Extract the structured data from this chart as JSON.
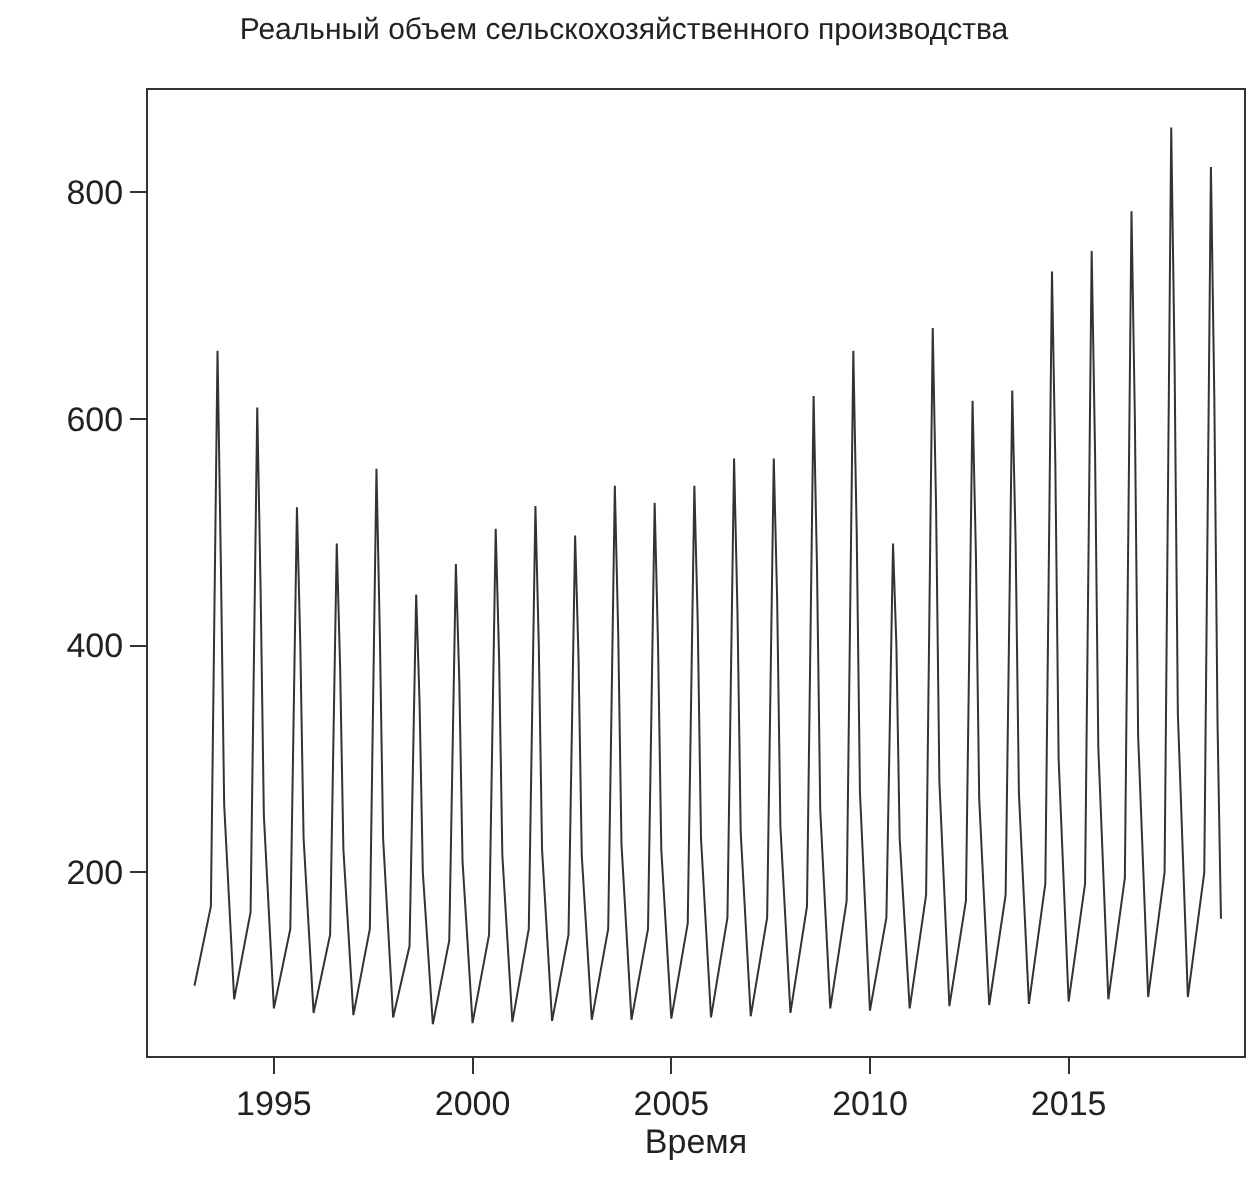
{
  "chart_data": {
    "type": "line",
    "title": "Реальный объем сельскохозяйственного производства",
    "xlabel": "Время",
    "x": [
      "1993-01",
      "1993-06",
      "1993-08",
      "1993-09",
      "1993-10",
      "1994-01",
      "1994-06",
      "1994-08",
      "1994-09",
      "1994-10",
      "1995-01",
      "1995-06",
      "1995-08",
      "1995-09",
      "1995-10",
      "1996-01",
      "1996-06",
      "1996-08",
      "1996-09",
      "1996-10",
      "1997-01",
      "1997-06",
      "1997-08",
      "1997-09",
      "1997-10",
      "1998-01",
      "1998-06",
      "1998-08",
      "1998-09",
      "1998-10",
      "1999-01",
      "1999-06",
      "1999-08",
      "1999-09",
      "1999-10",
      "2000-01",
      "2000-06",
      "2000-08",
      "2000-09",
      "2000-10",
      "2001-01",
      "2001-06",
      "2001-08",
      "2001-09",
      "2001-10",
      "2002-01",
      "2002-06",
      "2002-08",
      "2002-09",
      "2002-10",
      "2003-01",
      "2003-06",
      "2003-08",
      "2003-09",
      "2003-10",
      "2004-01",
      "2004-06",
      "2004-08",
      "2004-09",
      "2004-10",
      "2005-01",
      "2005-06",
      "2005-08",
      "2005-09",
      "2005-10",
      "2006-01",
      "2006-06",
      "2006-08",
      "2006-09",
      "2006-10",
      "2007-01",
      "2007-06",
      "2007-08",
      "2007-09",
      "2007-10",
      "2008-01",
      "2008-06",
      "2008-08",
      "2008-09",
      "2008-10",
      "2009-01",
      "2009-06",
      "2009-08",
      "2009-09",
      "2009-10",
      "2010-01",
      "2010-06",
      "2010-08",
      "2010-09",
      "2010-10",
      "2011-01",
      "2011-06",
      "2011-08",
      "2011-09",
      "2011-10",
      "2012-01",
      "2012-06",
      "2012-08",
      "2012-09",
      "2012-10",
      "2013-01",
      "2013-06",
      "2013-08",
      "2013-09",
      "2013-10",
      "2014-01",
      "2014-06",
      "2014-08",
      "2014-09",
      "2014-10",
      "2015-01",
      "2015-06",
      "2015-08",
      "2015-09",
      "2015-10",
      "2016-01",
      "2016-06",
      "2016-08",
      "2016-09",
      "2016-10",
      "2017-01",
      "2017-06",
      "2017-08",
      "2017-09",
      "2017-10",
      "2018-01",
      "2018-06",
      "2018-08",
      "2018-09",
      "2018-10",
      "2018-11"
    ],
    "series": [
      {
        "color": "#333333",
        "values": [
          100,
          170,
          660,
          470,
          260,
          88,
          165,
          610,
          450,
          250,
          80,
          150,
          522,
          400,
          230,
          76,
          145,
          490,
          380,
          220,
          74,
          150,
          556,
          410,
          230,
          72,
          135,
          445,
          350,
          200,
          66,
          140,
          472,
          370,
          210,
          67,
          145,
          503,
          390,
          215,
          68,
          150,
          523,
          400,
          220,
          69,
          145,
          497,
          390,
          215,
          70,
          150,
          541,
          410,
          225,
          70,
          150,
          526,
          400,
          220,
          71,
          155,
          541,
          420,
          230,
          72,
          160,
          565,
          430,
          235,
          73,
          160,
          565,
          440,
          240,
          76,
          170,
          620,
          470,
          255,
          80,
          175,
          660,
          500,
          270,
          78,
          160,
          490,
          400,
          230,
          80,
          180,
          680,
          520,
          280,
          82,
          175,
          616,
          480,
          265,
          83,
          180,
          625,
          490,
          270,
          84,
          190,
          730,
          560,
          300,
          86,
          190,
          748,
          570,
          310,
          88,
          195,
          783,
          600,
          320,
          90,
          200,
          857,
          650,
          340,
          90,
          200,
          822,
          620,
          330,
          159
        ]
      }
    ],
    "xlim": [
      "1991-11",
      "2019-06"
    ],
    "xticks": [
      "1995",
      "2000",
      "2005",
      "2010",
      "2015"
    ],
    "ylim": [
      38,
      890
    ],
    "yticks": [
      200,
      400,
      600,
      800
    ],
    "marker": "none",
    "line_style": "solid"
  }
}
